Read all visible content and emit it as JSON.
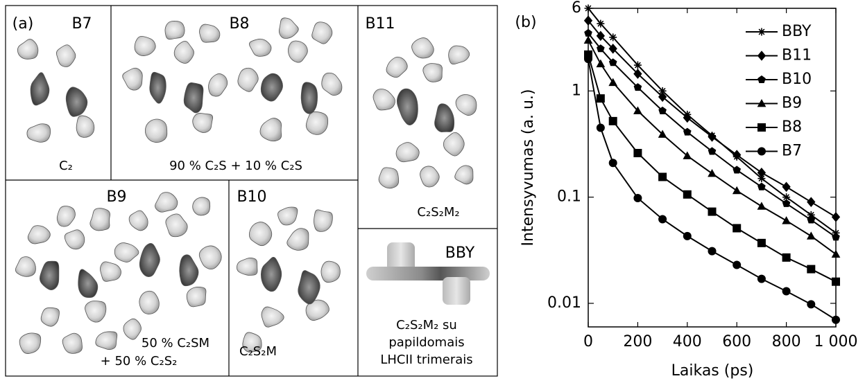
{
  "panel_a": {
    "label": "(a)",
    "boxes": [
      {
        "name": "B7",
        "caption": [
          "C₂"
        ]
      },
      {
        "name": "B8",
        "caption": [
          "90 % C₂S + 10 % C₂S"
        ]
      },
      {
        "name": "B11",
        "caption": [
          "C₂S₂M₂"
        ]
      },
      {
        "name": "B9",
        "caption": [
          "50 % C₂SM",
          "+ 50 % C₂S₂"
        ]
      },
      {
        "name": "B10",
        "caption": [
          "C₂S₂M"
        ]
      },
      {
        "name": "BBY",
        "caption": [
          "C₂S₂M₂ su",
          "papildomais",
          "LHCII trimerais"
        ]
      }
    ]
  },
  "chart_data": {
    "type": "line",
    "panel_label": "(b)",
    "x_label": "Laikas (ps)",
    "y_label": "Intensyvumas (a. u.)",
    "x": [
      0,
      50,
      100,
      200,
      300,
      400,
      500,
      600,
      700,
      800,
      900,
      1000
    ],
    "series": [
      {
        "name": "BBY",
        "color": "#000",
        "marker": "star",
        "values": [
          6,
          4.3,
          3.2,
          1.75,
          1.0,
          0.6,
          0.38,
          0.24,
          0.15,
          0.1,
          0.068,
          0.046
        ]
      },
      {
        "name": "B11",
        "color": "#000",
        "marker": "diamond",
        "values": [
          4.6,
          3.3,
          2.5,
          1.45,
          0.88,
          0.56,
          0.37,
          0.25,
          0.17,
          0.125,
          0.09,
          0.065
        ]
      },
      {
        "name": "B10",
        "color": "#000",
        "marker": "pentagon",
        "values": [
          3.5,
          2.5,
          1.85,
          1.08,
          0.65,
          0.41,
          0.27,
          0.18,
          0.125,
          0.087,
          0.061,
          0.042
        ]
      },
      {
        "name": "B9",
        "color": "#000",
        "marker": "triangle",
        "values": [
          3.0,
          1.8,
          1.2,
          0.65,
          0.39,
          0.245,
          0.167,
          0.115,
          0.082,
          0.06,
          0.043,
          0.029
        ]
      },
      {
        "name": "B8",
        "color": "#000",
        "marker": "square",
        "values": [
          2.2,
          0.85,
          0.52,
          0.26,
          0.155,
          0.106,
          0.073,
          0.051,
          0.037,
          0.027,
          0.021,
          0.016
        ]
      },
      {
        "name": "B7",
        "color": "#000",
        "marker": "circle",
        "values": [
          2.0,
          0.45,
          0.21,
          0.098,
          0.062,
          0.043,
          0.031,
          0.023,
          0.017,
          0.013,
          0.0098,
          0.007
        ]
      }
    ],
    "xlim": [
      0,
      1000
    ],
    "xticks": [
      0,
      200,
      400,
      600,
      800,
      {
        "value": 1000,
        "label": "1 000"
      }
    ],
    "ylim": [
      0.006,
      6
    ],
    "yticks": [
      0.01,
      0.1,
      1,
      6
    ],
    "yscale": "log",
    "legend": "upper right"
  }
}
